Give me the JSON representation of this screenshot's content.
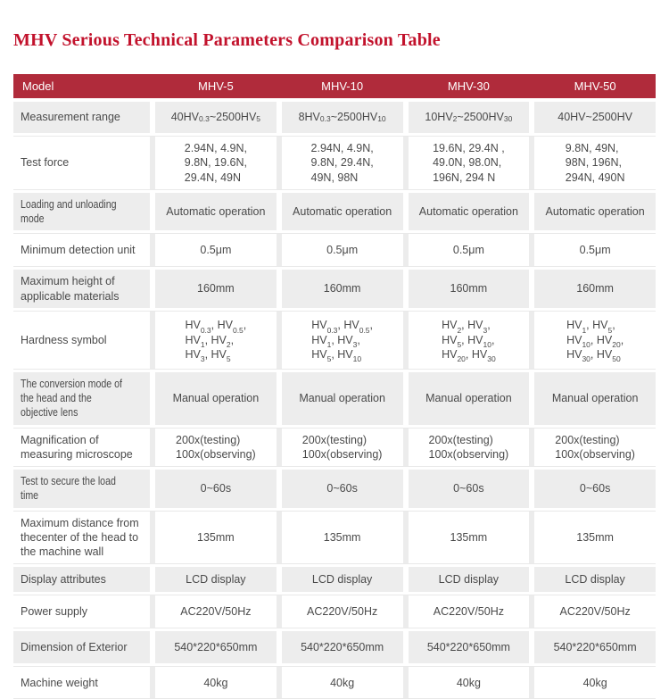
{
  "page": {
    "title": "MHV Serious Technical Parameters Comparison Table"
  },
  "colors": {
    "title_red": "#C2122C",
    "header_bg": "#B02B3B",
    "header_text": "#FFFFFF",
    "row_gray": "#EDEDED",
    "body_text": "#4A4A4A"
  },
  "table": {
    "header": {
      "model_label": "Model",
      "columns": [
        "MHV-5",
        "MHV-10",
        "MHV-30",
        "MHV-50"
      ]
    },
    "rows": [
      {
        "label": "Measurement range",
        "values": [
          "40HV_{0.3}~2500HV_{5}",
          "8HV_{0.3}~2500HV_{10}",
          "10HV_{2}~2500HV_{30}",
          "40HV~2500HV"
        ]
      },
      {
        "label": "Test force",
        "values": [
          [
            "2.94N、 4.9N、",
            "9.8N、 19.6N、",
            "29.4N、 49N"
          ],
          [
            "2.94N、 4.9N、",
            "9.8N、 29.4N、",
            "49N、 98N"
          ],
          [
            "19.6N、 29.4N 、",
            "49.0N、 98.0N、",
            "196N、 294 N"
          ],
          [
            "9.8N、 49N、",
            "98N、 196N、",
            "294N、 490N"
          ]
        ]
      },
      {
        "label": "Loading and unloading mode",
        "values": [
          "Automatic operation",
          "Automatic operation",
          "Automatic operation",
          "Automatic operation"
        ]
      },
      {
        "label": "Minimum detection unit",
        "values": [
          "0.5μm",
          "0.5μm",
          "0.5μm",
          "0.5μm"
        ]
      },
      {
        "label": "Maximum height of applicable materials",
        "values": [
          "160mm",
          "160mm",
          "160mm",
          "160mm"
        ]
      },
      {
        "label": "Hardness symbol",
        "values": [
          [
            "HV_{0.3}、 HV_{0.5}、",
            "HV_{1}、 HV_{2}、",
            "HV_{3}、 HV_{5}"
          ],
          [
            "HV_{0.3}、 HV_{0.5}、",
            "HV_{1}、 HV_{3}、",
            "HV_{5}、 HV_{10}"
          ],
          [
            "HV_{2}、 HV_{3}、",
            "HV_{5}、 HV_{10}、",
            "HV_{20}、 HV_{30}"
          ],
          [
            "HV_{1}、 HV_{5}、",
            "HV_{10}、 HV_{20}、",
            "HV_{30}、 HV_{50}"
          ]
        ]
      },
      {
        "label": "The conversion mode of the head and the objective lens",
        "values": [
          "Manual operation",
          "Manual operation",
          "Manual operation",
          "Manual operation"
        ]
      },
      {
        "label": "Magnification of measuring microscope",
        "values": [
          [
            "200x(testing)",
            "100x(observing)"
          ],
          [
            "200x(testing)",
            "100x(observing)"
          ],
          [
            "200x(testing)",
            "100x(observing)"
          ],
          [
            "200x(testing)",
            "100x(observing)"
          ]
        ]
      },
      {
        "label": "Test to secure the load time",
        "values": [
          "0~60s",
          "0~60s",
          "0~60s",
          "0~60s"
        ]
      },
      {
        "label": "Maximum distance from thecenter of the head to the machine wall",
        "values": [
          "135mm",
          "135mm",
          "135mm",
          "135mm"
        ]
      },
      {
        "label": "Display attributes",
        "values": [
          "LCD display",
          "LCD display",
          "LCD display",
          "LCD display"
        ]
      },
      {
        "label": "Power supply",
        "values": [
          "AC220V/50Hz",
          "AC220V/50Hz",
          "AC220V/50Hz",
          "AC220V/50Hz"
        ]
      },
      {
        "label": "Dimension of Exterior",
        "values": [
          "540*220*650mm",
          "540*220*650mm",
          "540*220*650mm",
          "540*220*650mm"
        ]
      },
      {
        "label": "Machine weight",
        "values": [
          "40kg",
          "40kg",
          "40kg",
          "40kg"
        ]
      }
    ]
  }
}
